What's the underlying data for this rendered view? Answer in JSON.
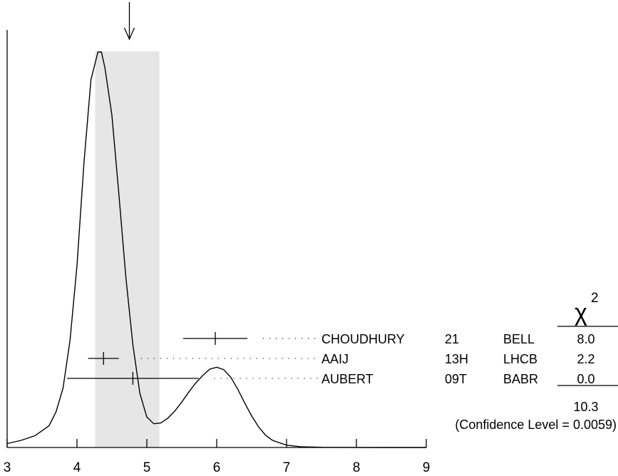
{
  "chart_data": {
    "type": "ideogram",
    "xlim": [
      3,
      9
    ],
    "x_ticks": [
      "3",
      "4",
      "5",
      "6",
      "7",
      "8",
      "9"
    ],
    "average_marker_x": 4.75,
    "band_range": [
      4.26,
      5.18
    ],
    "curve": {
      "x": [
        3.0,
        3.2,
        3.4,
        3.6,
        3.7,
        3.8,
        3.9,
        4.0,
        4.1,
        4.2,
        4.3,
        4.35,
        4.4,
        4.5,
        4.6,
        4.7,
        4.8,
        4.9,
        5.0,
        5.1,
        5.2,
        5.3,
        5.4,
        5.5,
        5.6,
        5.7,
        5.8,
        5.9,
        6.0,
        6.1,
        6.2,
        6.3,
        6.4,
        6.5,
        6.6,
        6.7,
        6.8,
        7.0,
        7.2,
        7.5,
        8.0,
        8.5,
        9.0
      ],
      "y": [
        0.01,
        0.018,
        0.03,
        0.055,
        0.09,
        0.15,
        0.27,
        0.46,
        0.72,
        0.93,
        1.0,
        1.0,
        0.96,
        0.84,
        0.64,
        0.43,
        0.26,
        0.137,
        0.077,
        0.06,
        0.062,
        0.074,
        0.092,
        0.115,
        0.14,
        0.163,
        0.182,
        0.198,
        0.203,
        0.197,
        0.178,
        0.148,
        0.113,
        0.08,
        0.052,
        0.031,
        0.018,
        0.006,
        0.002,
        0.0005,
        0.0001,
        0.0,
        0.0
      ]
    },
    "measurements": [
      {
        "author": "CHOUDHURY",
        "year": "21",
        "experiment": "BELL",
        "value": 5.98,
        "error": 0.46,
        "chi2": "8.0"
      },
      {
        "author": "AAIJ",
        "year": "13H",
        "experiment": "LHCB",
        "value": 4.38,
        "error": 0.22,
        "chi2": "2.2"
      },
      {
        "author": "AUBERT",
        "year": "09T",
        "experiment": "BABR",
        "value": 4.8,
        "error": 0.94,
        "chi2": "0.0"
      }
    ],
    "chi2_header": "χ",
    "chi2_superscript": "2",
    "chi2_total": "10.3",
    "confidence_text": "(Confidence Level = 0.0059)"
  }
}
